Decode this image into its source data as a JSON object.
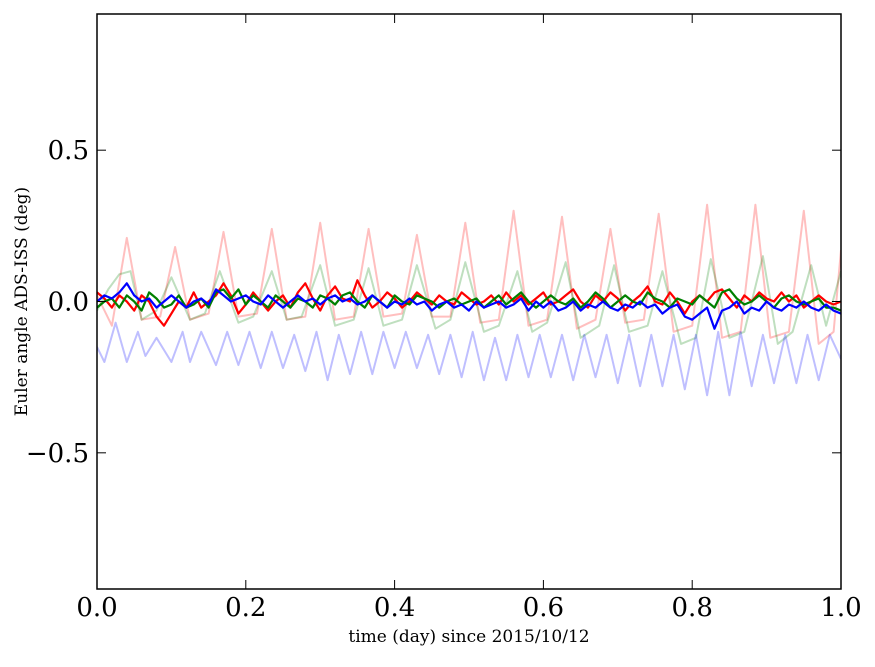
{
  "chart_data": {
    "type": "line",
    "title": "",
    "xlabel": "time (day) since 2015/10/12",
    "ylabel": "Euler angle ADS-ISS (deg)",
    "xlim": [
      0.0,
      1.0
    ],
    "ylim": [
      -0.95,
      0.95
    ],
    "xticks": [
      0.0,
      0.2,
      0.4,
      0.6,
      0.8,
      1.0
    ],
    "xtick_labels": [
      "0.0",
      "0.2",
      "0.4",
      "0.6",
      "0.8",
      "1.0"
    ],
    "yticks": [
      -0.5,
      0.0,
      0.5
    ],
    "ytick_labels": [
      "−0.5",
      "0.0",
      "0.5"
    ],
    "grid": false,
    "legend": "none",
    "series": [
      {
        "color": "#ff0000",
        "opacity": 0.25,
        "x": [
          0.0,
          0.02,
          0.04,
          0.06,
          0.085,
          0.105,
          0.125,
          0.15,
          0.17,
          0.19,
          0.215,
          0.235,
          0.255,
          0.28,
          0.3,
          0.32,
          0.345,
          0.365,
          0.385,
          0.41,
          0.43,
          0.45,
          0.475,
          0.495,
          0.515,
          0.54,
          0.56,
          0.58,
          0.605,
          0.625,
          0.645,
          0.67,
          0.69,
          0.71,
          0.735,
          0.755,
          0.775,
          0.8,
          0.82,
          0.84,
          0.865,
          0.885,
          0.905,
          0.93,
          0.95,
          0.97,
          0.99,
          1.0
        ],
        "y": [
          0.02,
          -0.08,
          0.21,
          -0.06,
          -0.05,
          0.18,
          -0.06,
          -0.04,
          0.23,
          -0.05,
          -0.04,
          0.24,
          -0.06,
          -0.05,
          0.26,
          -0.06,
          -0.05,
          0.24,
          -0.05,
          -0.04,
          0.22,
          -0.05,
          -0.05,
          0.26,
          -0.07,
          -0.06,
          0.3,
          -0.08,
          -0.06,
          0.28,
          -0.09,
          -0.06,
          0.24,
          -0.07,
          -0.06,
          0.29,
          -0.1,
          -0.08,
          0.32,
          -0.12,
          -0.1,
          0.32,
          -0.12,
          -0.1,
          0.3,
          -0.14,
          -0.1,
          0.17
        ]
      },
      {
        "color": "#008000",
        "opacity": 0.25,
        "x": [
          0.0,
          0.015,
          0.03,
          0.045,
          0.06,
          0.08,
          0.1,
          0.125,
          0.145,
          0.165,
          0.19,
          0.21,
          0.235,
          0.255,
          0.275,
          0.3,
          0.32,
          0.345,
          0.365,
          0.385,
          0.41,
          0.43,
          0.455,
          0.475,
          0.495,
          0.52,
          0.54,
          0.565,
          0.585,
          0.605,
          0.63,
          0.65,
          0.675,
          0.695,
          0.715,
          0.74,
          0.76,
          0.785,
          0.805,
          0.825,
          0.85,
          0.87,
          0.895,
          0.915,
          0.935,
          0.96,
          0.98,
          1.0
        ],
        "y": [
          -0.03,
          0.04,
          0.09,
          0.1,
          -0.06,
          -0.03,
          0.08,
          -0.06,
          -0.04,
          0.1,
          -0.07,
          -0.05,
          0.1,
          -0.06,
          -0.05,
          0.12,
          -0.08,
          -0.06,
          0.11,
          -0.08,
          -0.06,
          0.12,
          -0.09,
          -0.06,
          0.13,
          -0.1,
          -0.08,
          0.1,
          -0.1,
          -0.07,
          0.13,
          -0.12,
          -0.08,
          0.12,
          -0.1,
          -0.08,
          0.1,
          -0.14,
          -0.12,
          0.14,
          -0.12,
          -0.1,
          0.15,
          -0.14,
          -0.1,
          0.12,
          -0.08,
          0.1
        ]
      },
      {
        "color": "#0000ff",
        "opacity": 0.25,
        "x": [
          0.0,
          0.01,
          0.025,
          0.04,
          0.055,
          0.065,
          0.08,
          0.1,
          0.115,
          0.125,
          0.14,
          0.16,
          0.175,
          0.19,
          0.205,
          0.22,
          0.235,
          0.25,
          0.265,
          0.28,
          0.295,
          0.31,
          0.325,
          0.34,
          0.355,
          0.37,
          0.385,
          0.4,
          0.415,
          0.43,
          0.445,
          0.46,
          0.475,
          0.49,
          0.505,
          0.52,
          0.535,
          0.55,
          0.565,
          0.58,
          0.595,
          0.61,
          0.625,
          0.64,
          0.655,
          0.67,
          0.685,
          0.7,
          0.715,
          0.73,
          0.745,
          0.76,
          0.775,
          0.79,
          0.805,
          0.82,
          0.835,
          0.85,
          0.865,
          0.88,
          0.895,
          0.91,
          0.925,
          0.94,
          0.955,
          0.97,
          0.985,
          1.0
        ],
        "y": [
          -0.15,
          -0.2,
          -0.07,
          -0.2,
          -0.1,
          -0.18,
          -0.12,
          -0.2,
          -0.1,
          -0.2,
          -0.1,
          -0.21,
          -0.1,
          -0.21,
          -0.1,
          -0.22,
          -0.1,
          -0.22,
          -0.11,
          -0.23,
          -0.1,
          -0.26,
          -0.11,
          -0.24,
          -0.1,
          -0.24,
          -0.1,
          -0.22,
          -0.1,
          -0.22,
          -0.11,
          -0.24,
          -0.11,
          -0.25,
          -0.1,
          -0.26,
          -0.12,
          -0.26,
          -0.11,
          -0.25,
          -0.11,
          -0.25,
          -0.11,
          -0.26,
          -0.11,
          -0.25,
          -0.11,
          -0.27,
          -0.11,
          -0.28,
          -0.11,
          -0.28,
          -0.11,
          -0.29,
          -0.11,
          -0.31,
          -0.1,
          -0.31,
          -0.1,
          -0.28,
          -0.11,
          -0.27,
          -0.11,
          -0.27,
          -0.11,
          -0.26,
          -0.11,
          -0.19
        ]
      },
      {
        "color": "#ff0000",
        "opacity": 1.0,
        "x": [
          0.0,
          0.01,
          0.02,
          0.03,
          0.04,
          0.05,
          0.06,
          0.07,
          0.08,
          0.09,
          0.1,
          0.11,
          0.12,
          0.13,
          0.14,
          0.15,
          0.16,
          0.17,
          0.18,
          0.19,
          0.2,
          0.21,
          0.22,
          0.23,
          0.24,
          0.25,
          0.26,
          0.27,
          0.28,
          0.29,
          0.3,
          0.31,
          0.32,
          0.33,
          0.34,
          0.35,
          0.36,
          0.37,
          0.38,
          0.39,
          0.4,
          0.41,
          0.42,
          0.43,
          0.44,
          0.45,
          0.46,
          0.47,
          0.48,
          0.49,
          0.5,
          0.51,
          0.52,
          0.53,
          0.54,
          0.55,
          0.56,
          0.57,
          0.58,
          0.59,
          0.6,
          0.61,
          0.62,
          0.63,
          0.64,
          0.65,
          0.66,
          0.67,
          0.68,
          0.69,
          0.7,
          0.71,
          0.72,
          0.73,
          0.74,
          0.75,
          0.76,
          0.77,
          0.78,
          0.79,
          0.8,
          0.81,
          0.82,
          0.83,
          0.84,
          0.85,
          0.86,
          0.87,
          0.88,
          0.89,
          0.9,
          0.91,
          0.92,
          0.93,
          0.94,
          0.95,
          0.96,
          0.97,
          0.98,
          0.99,
          1.0
        ],
        "y": [
          0.03,
          0.01,
          -0.02,
          0.02,
          0.0,
          -0.03,
          0.02,
          0.0,
          -0.05,
          -0.08,
          -0.04,
          0.0,
          -0.02,
          0.03,
          -0.02,
          0.0,
          0.02,
          0.06,
          0.02,
          -0.04,
          -0.01,
          0.03,
          0.0,
          -0.03,
          0.0,
          0.02,
          -0.02,
          0.03,
          0.06,
          0.01,
          -0.03,
          0.02,
          0.05,
          0.01,
          0.0,
          0.07,
          0.02,
          -0.02,
          0.0,
          0.03,
          0.01,
          -0.02,
          0.0,
          0.03,
          0.01,
          -0.01,
          0.02,
          0.0,
          -0.01,
          0.03,
          0.01,
          -0.01,
          0.0,
          0.02,
          -0.01,
          0.03,
          0.0,
          0.02,
          -0.01,
          0.01,
          0.03,
          -0.01,
          0.0,
          0.02,
          0.04,
          0.0,
          -0.02,
          0.02,
          0.0,
          0.03,
          0.01,
          -0.03,
          0.0,
          0.02,
          0.05,
          0.0,
          -0.01,
          0.03,
          0.0,
          -0.04,
          0.0,
          0.02,
          0.0,
          0.03,
          0.04,
          0.01,
          -0.02,
          0.02,
          0.0,
          0.03,
          0.01,
          0.0,
          0.03,
          0.0,
          0.02,
          -0.02,
          0.0,
          0.02,
          0.0,
          -0.01,
          0.0
        ]
      },
      {
        "color": "#008000",
        "opacity": 1.0,
        "x": [
          0.0,
          0.01,
          0.02,
          0.03,
          0.04,
          0.05,
          0.06,
          0.07,
          0.08,
          0.09,
          0.1,
          0.11,
          0.12,
          0.13,
          0.14,
          0.15,
          0.16,
          0.17,
          0.18,
          0.19,
          0.2,
          0.21,
          0.22,
          0.23,
          0.24,
          0.25,
          0.26,
          0.27,
          0.28,
          0.29,
          0.3,
          0.31,
          0.32,
          0.33,
          0.34,
          0.35,
          0.36,
          0.37,
          0.38,
          0.39,
          0.4,
          0.41,
          0.42,
          0.43,
          0.44,
          0.45,
          0.46,
          0.47,
          0.48,
          0.49,
          0.5,
          0.51,
          0.52,
          0.53,
          0.54,
          0.55,
          0.56,
          0.57,
          0.58,
          0.59,
          0.6,
          0.61,
          0.62,
          0.63,
          0.64,
          0.65,
          0.66,
          0.67,
          0.68,
          0.69,
          0.7,
          0.71,
          0.72,
          0.73,
          0.74,
          0.75,
          0.76,
          0.77,
          0.78,
          0.79,
          0.8,
          0.81,
          0.82,
          0.83,
          0.84,
          0.85,
          0.86,
          0.87,
          0.88,
          0.89,
          0.9,
          0.91,
          0.92,
          0.93,
          0.94,
          0.95,
          0.96,
          0.97,
          0.98,
          0.99,
          1.0
        ],
        "y": [
          -0.02,
          0.0,
          0.01,
          -0.02,
          0.02,
          0.0,
          -0.03,
          0.03,
          0.01,
          -0.02,
          -0.01,
          0.02,
          -0.02,
          -0.01,
          0.01,
          -0.02,
          0.03,
          0.04,
          0.01,
          0.04,
          -0.01,
          0.02,
          0.0,
          -0.02,
          0.02,
          0.0,
          -0.02,
          0.01,
          0.0,
          -0.02,
          0.02,
          0.01,
          -0.01,
          0.02,
          0.03,
          0.0,
          -0.02,
          0.02,
          0.0,
          -0.02,
          0.02,
          0.0,
          -0.01,
          0.02,
          0.01,
          0.0,
          -0.02,
          0.0,
          0.01,
          -0.01,
          0.0,
          0.01,
          -0.02,
          0.0,
          0.02,
          -0.01,
          0.01,
          0.03,
          0.0,
          -0.02,
          0.0,
          0.02,
          0.0,
          -0.01,
          0.01,
          -0.02,
          0.0,
          0.03,
          0.01,
          -0.02,
          0.0,
          0.02,
          0.0,
          -0.01,
          0.03,
          0.01,
          0.0,
          -0.02,
          0.01,
          0.0,
          -0.01,
          0.02,
          0.0,
          -0.02,
          0.03,
          0.04,
          0.01,
          -0.01,
          0.0,
          0.02,
          0.0,
          -0.02,
          0.01,
          0.02,
          0.0,
          -0.01,
          0.0,
          0.01,
          -0.02,
          -0.02,
          -0.03
        ]
      },
      {
        "color": "#0000ff",
        "opacity": 1.0,
        "x": [
          0.0,
          0.01,
          0.02,
          0.03,
          0.04,
          0.05,
          0.06,
          0.07,
          0.08,
          0.09,
          0.1,
          0.11,
          0.12,
          0.13,
          0.14,
          0.15,
          0.16,
          0.17,
          0.18,
          0.19,
          0.2,
          0.21,
          0.22,
          0.23,
          0.24,
          0.25,
          0.26,
          0.27,
          0.28,
          0.29,
          0.3,
          0.31,
          0.32,
          0.33,
          0.34,
          0.35,
          0.36,
          0.37,
          0.38,
          0.39,
          0.4,
          0.41,
          0.42,
          0.43,
          0.44,
          0.45,
          0.46,
          0.47,
          0.48,
          0.49,
          0.5,
          0.51,
          0.52,
          0.53,
          0.54,
          0.55,
          0.56,
          0.57,
          0.58,
          0.59,
          0.6,
          0.61,
          0.62,
          0.63,
          0.64,
          0.65,
          0.66,
          0.67,
          0.68,
          0.69,
          0.7,
          0.71,
          0.72,
          0.73,
          0.74,
          0.75,
          0.76,
          0.77,
          0.78,
          0.79,
          0.8,
          0.81,
          0.82,
          0.83,
          0.84,
          0.85,
          0.86,
          0.87,
          0.88,
          0.89,
          0.9,
          0.91,
          0.92,
          0.93,
          0.94,
          0.95,
          0.96,
          0.97,
          0.98,
          0.99,
          1.0
        ],
        "y": [
          0.0,
          0.02,
          0.01,
          0.03,
          0.06,
          0.02,
          0.0,
          0.01,
          -0.02,
          0.0,
          0.02,
          0.0,
          -0.02,
          0.0,
          0.01,
          -0.01,
          0.04,
          0.02,
          0.0,
          0.01,
          0.02,
          0.0,
          -0.01,
          0.02,
          0.0,
          -0.02,
          0.0,
          0.02,
          0.0,
          0.01,
          -0.01,
          0.01,
          0.02,
          0.0,
          0.01,
          -0.01,
          0.0,
          0.02,
          0.0,
          -0.02,
          0.0,
          -0.01,
          0.01,
          -0.01,
          0.0,
          -0.03,
          -0.01,
          0.0,
          -0.02,
          -0.01,
          -0.03,
          0.0,
          -0.02,
          -0.01,
          0.0,
          -0.02,
          -0.01,
          0.01,
          -0.03,
          0.0,
          -0.02,
          0.0,
          -0.03,
          -0.02,
          0.0,
          -0.03,
          -0.01,
          -0.02,
          0.0,
          -0.02,
          -0.03,
          -0.01,
          -0.02,
          0.0,
          -0.02,
          -0.01,
          -0.04,
          -0.02,
          -0.01,
          -0.05,
          -0.06,
          -0.04,
          -0.02,
          -0.09,
          -0.03,
          -0.02,
          0.0,
          -0.04,
          -0.02,
          -0.03,
          0.0,
          -0.02,
          -0.03,
          -0.01,
          -0.02,
          0.0,
          -0.02,
          -0.03,
          -0.01,
          -0.03,
          -0.04
        ]
      }
    ]
  }
}
